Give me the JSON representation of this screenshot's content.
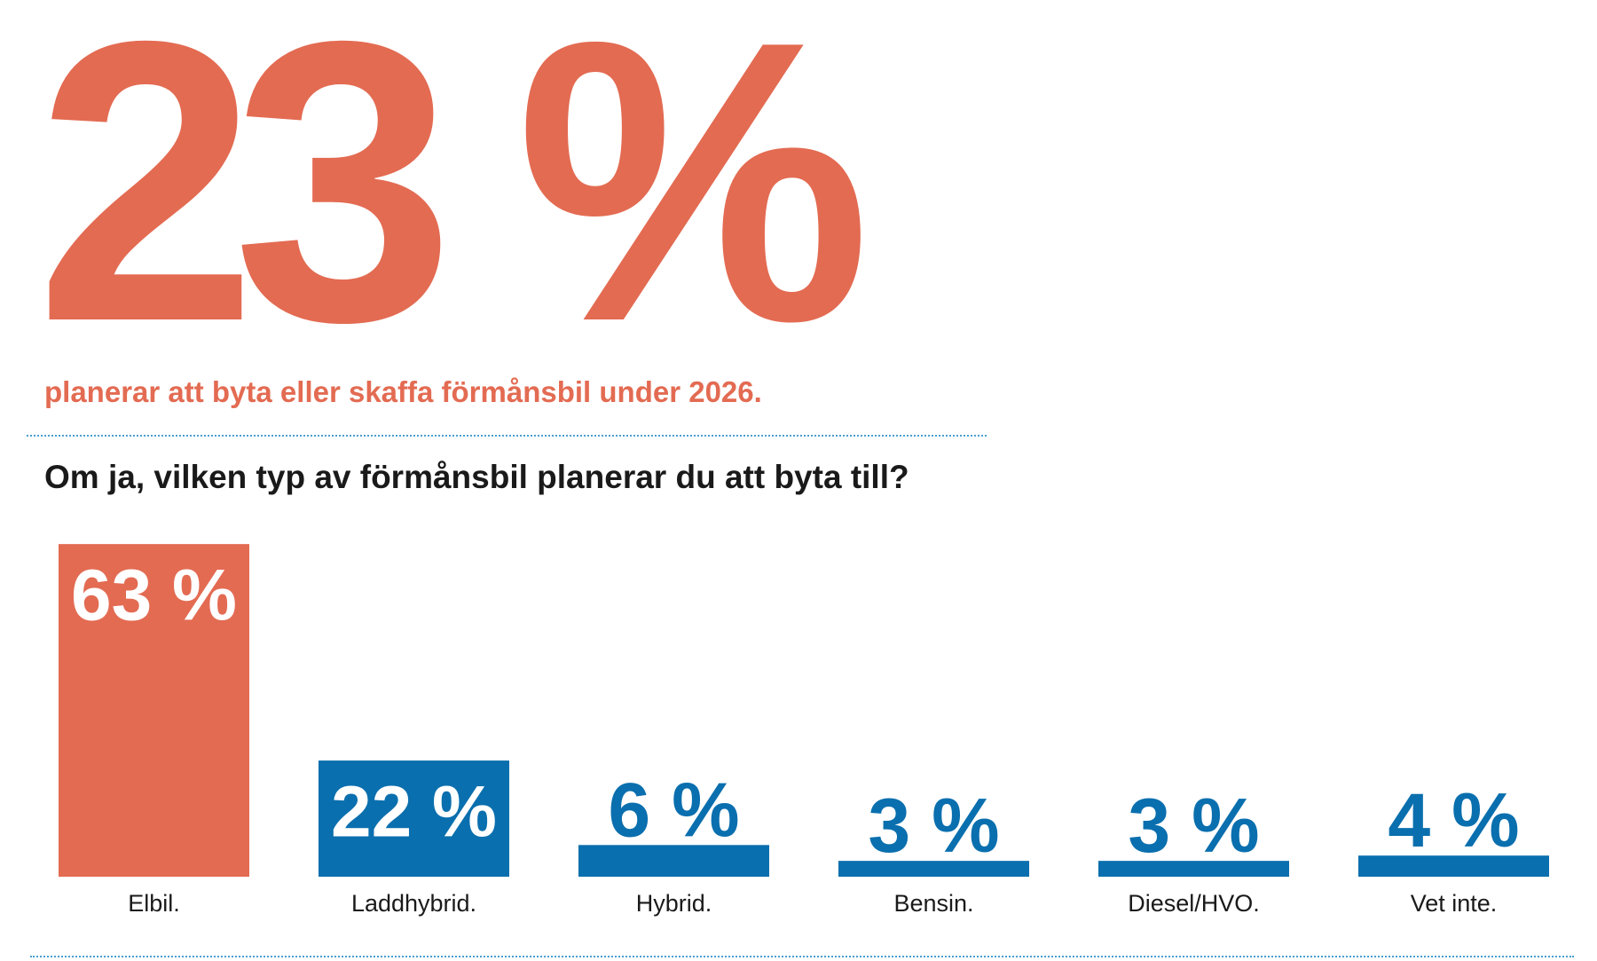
{
  "headline": {
    "value": "23 %",
    "text": "planerar att byta eller skaffa förmånsbil under 2026."
  },
  "chart_data": {
    "type": "bar",
    "title": "Om ja, vilken typ av förmånsbil planerar du att byta till?",
    "categories": [
      "Elbil.",
      "Laddhybrid.",
      "Hybrid.",
      "Bensin.",
      "Diesel/HVO.",
      "Vet inte."
    ],
    "values": [
      63,
      22,
      6,
      3,
      3,
      4
    ],
    "value_labels": [
      "63 %",
      "22 %",
      "6 %",
      "3 %",
      "3 %",
      "4 %"
    ],
    "highlight_color": "#e36b52",
    "bar_color": "#0a6fae",
    "grid": false
  }
}
